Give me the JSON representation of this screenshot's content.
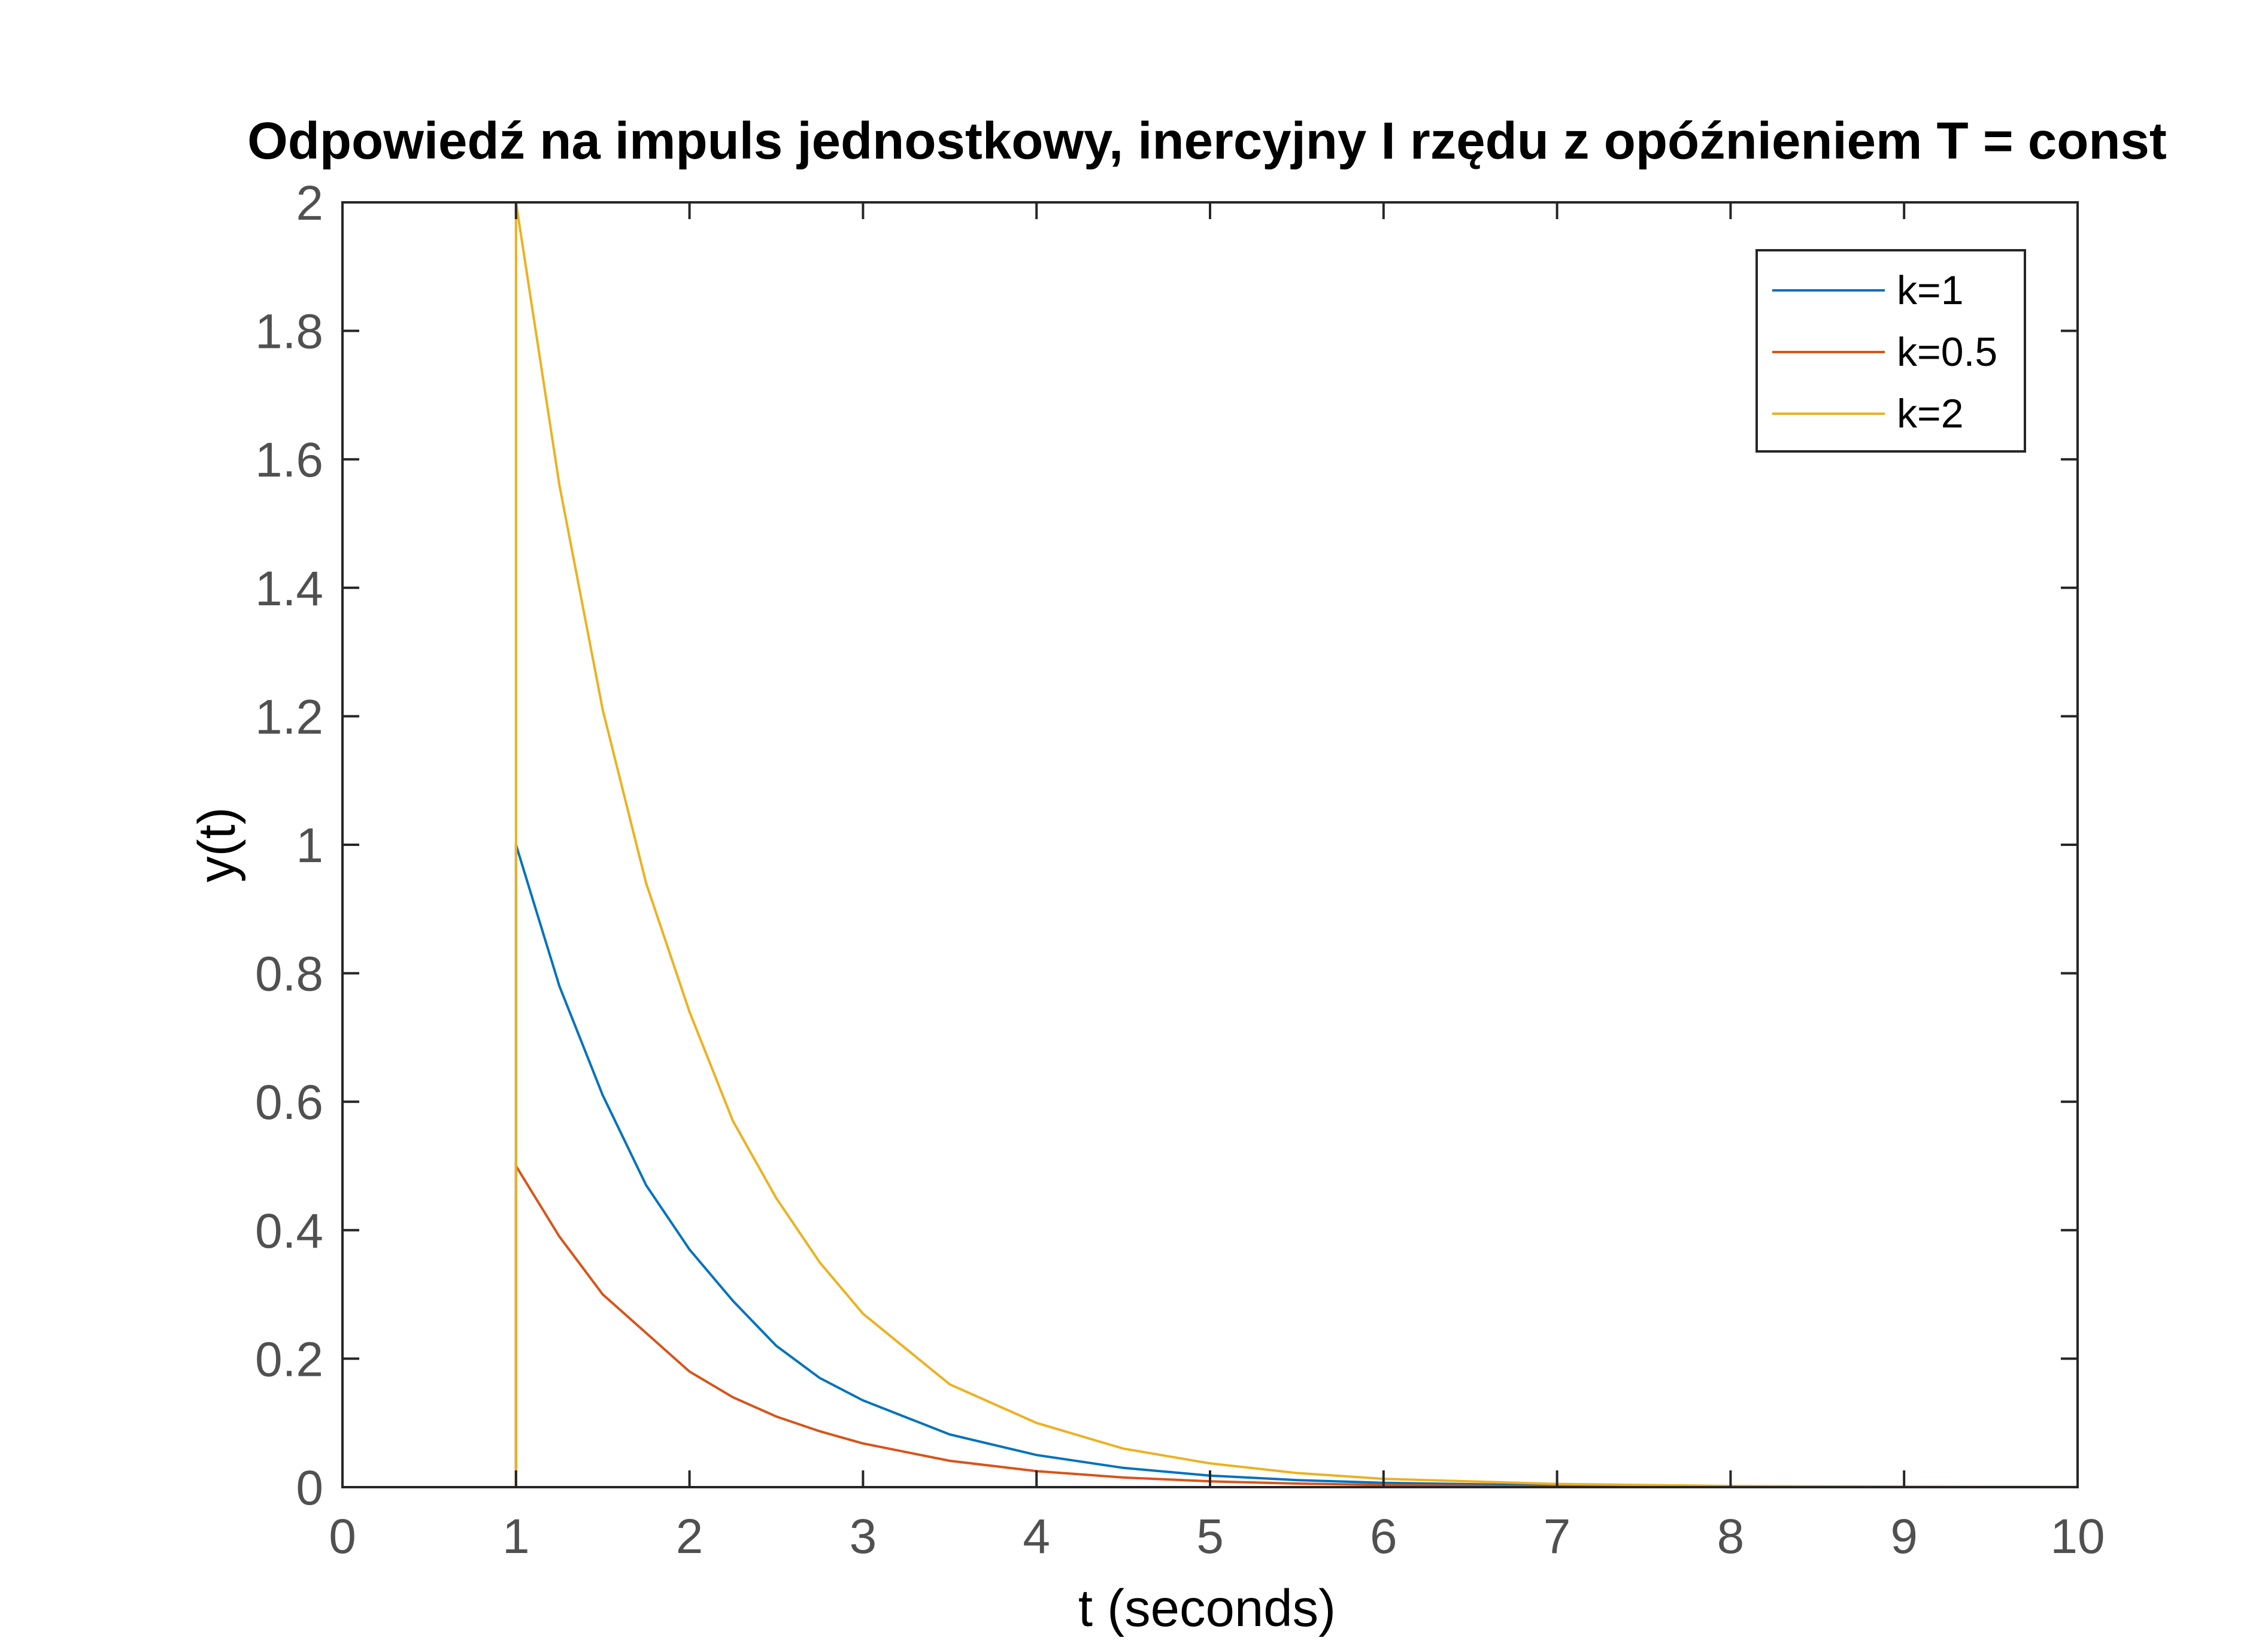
{
  "chart_data": {
    "type": "line",
    "title": "Odpowiedź na impuls jednostkowy, inercyjny I rzędu z opóźnieniem T = const",
    "xlabel": "t (seconds)",
    "ylabel": "y(t)",
    "xlim": [
      0,
      10
    ],
    "ylim": [
      0,
      2
    ],
    "x_ticks": [
      "0",
      "1",
      "2",
      "3",
      "4",
      "5",
      "6",
      "7",
      "8",
      "9",
      "10"
    ],
    "y_ticks": [
      "0",
      "0.2",
      "0.4",
      "0.6",
      "0.8",
      "1",
      "1.2",
      "1.4",
      "1.6",
      "1.8",
      "2"
    ],
    "grid": false,
    "legend_position": "top-right",
    "series": [
      {
        "name": "k=1",
        "color": "#0072BD",
        "points": [
          [
            0,
            0
          ],
          [
            1,
            0
          ],
          [
            1,
            1
          ],
          [
            1.25,
            0.78
          ],
          [
            1.5,
            0.61
          ],
          [
            1.75,
            0.47
          ],
          [
            2,
            0.37
          ],
          [
            2.25,
            0.29
          ],
          [
            2.5,
            0.22
          ],
          [
            2.75,
            0.17
          ],
          [
            3,
            0.135
          ],
          [
            3.5,
            0.082
          ],
          [
            4,
            0.05
          ],
          [
            4.5,
            0.03
          ],
          [
            5,
            0.018
          ],
          [
            5.5,
            0.011
          ],
          [
            6,
            0.0067
          ],
          [
            7,
            0.0025
          ],
          [
            8,
            0.0009
          ],
          [
            9,
            0.0003
          ],
          [
            10,
            0.0001
          ]
        ]
      },
      {
        "name": "k=0.5",
        "color": "#D95319",
        "points": [
          [
            0,
            0
          ],
          [
            1,
            0
          ],
          [
            1,
            0.5
          ],
          [
            1.25,
            0.39
          ],
          [
            1.5,
            0.3
          ],
          [
            1.75,
            0.24
          ],
          [
            2,
            0.18
          ],
          [
            2.25,
            0.14
          ],
          [
            2.5,
            0.11
          ],
          [
            2.75,
            0.087
          ],
          [
            3,
            0.068
          ],
          [
            3.5,
            0.041
          ],
          [
            4,
            0.025
          ],
          [
            4.5,
            0.015
          ],
          [
            5,
            0.009
          ],
          [
            5.5,
            0.0056
          ],
          [
            6,
            0.0034
          ],
          [
            7,
            0.0012
          ],
          [
            8,
            0.0005
          ],
          [
            9,
            0.0002
          ],
          [
            10,
            0.0001
          ]
        ]
      },
      {
        "name": "k=2",
        "color": "#EDB120",
        "points": [
          [
            0,
            0
          ],
          [
            1,
            0
          ],
          [
            1,
            2
          ],
          [
            1.25,
            1.56
          ],
          [
            1.5,
            1.21
          ],
          [
            1.75,
            0.94
          ],
          [
            2,
            0.74
          ],
          [
            2.25,
            0.57
          ],
          [
            2.5,
            0.45
          ],
          [
            2.75,
            0.35
          ],
          [
            3,
            0.27
          ],
          [
            3.5,
            0.16
          ],
          [
            4,
            0.1
          ],
          [
            4.5,
            0.06
          ],
          [
            5,
            0.037
          ],
          [
            5.5,
            0.022
          ],
          [
            6,
            0.013
          ],
          [
            7,
            0.005
          ],
          [
            8,
            0.0018
          ],
          [
            9,
            0.0007
          ],
          [
            10,
            0.0002
          ]
        ]
      }
    ]
  }
}
